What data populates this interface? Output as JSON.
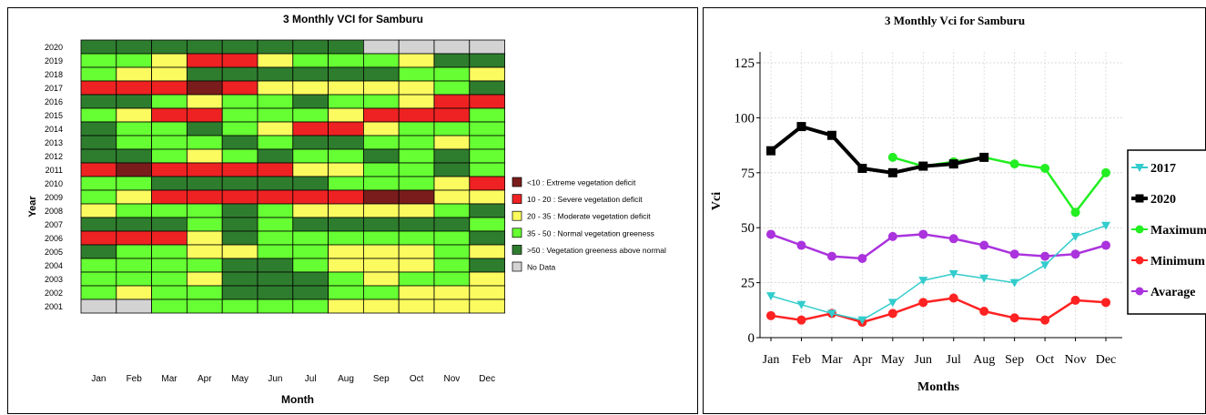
{
  "colors": {
    "extreme": "#7b1c1c",
    "severe": "#ee2222",
    "moderate": "#fbfb5f",
    "normal": "#66ff33",
    "above": "#2e7d2e",
    "nodata": "#d3d3d3"
  },
  "chart_data": [
    {
      "type": "heatmap",
      "title": "3 Monthly VCI for Samburu",
      "xlabel": "Month",
      "ylabel": "Year",
      "x_categories": [
        "Jan",
        "Feb",
        "Mar",
        "Apr",
        "May",
        "Jun",
        "Jul",
        "Aug",
        "Sep",
        "Oct",
        "Nov",
        "Dec"
      ],
      "y_categories": [
        "2020",
        "2019",
        "2018",
        "2017",
        "2016",
        "2015",
        "2014",
        "2013",
        "2012",
        "2011",
        "2010",
        "2009",
        "2008",
        "2007",
        "2006",
        "2005",
        "2004",
        "2003",
        "2002",
        "2001"
      ],
      "legend": [
        {
          "key": "E",
          "label": "<10 : Extreme vegetation deficit",
          "color": "#7b1c1c"
        },
        {
          "key": "S",
          "label": "10 - 20 : Severe vegetation deficit",
          "color": "#ee2222"
        },
        {
          "key": "M",
          "label": "20 - 35 : Moderate vegetation deficit",
          "color": "#fbfb5f"
        },
        {
          "key": "N",
          "label": "35 - 50 : Normal vegetation greeness",
          "color": "#66ff33"
        },
        {
          "key": "A",
          "label": ">50 : Vegetation greeness above normal",
          "color": "#2e7d2e"
        },
        {
          "key": "X",
          "label": "No Data",
          "color": "#d3d3d3"
        }
      ],
      "legend_position": "right",
      "cells": [
        [
          "A",
          "A",
          "A",
          "A",
          "A",
          "A",
          "A",
          "A",
          "X",
          "X",
          "X",
          "X"
        ],
        [
          "N",
          "N",
          "M",
          "S",
          "S",
          "M",
          "N",
          "N",
          "N",
          "M",
          "A",
          "A"
        ],
        [
          "N",
          "M",
          "M",
          "A",
          "A",
          "A",
          "A",
          "A",
          "A",
          "N",
          "N",
          "M"
        ],
        [
          "S",
          "S",
          "S",
          "E",
          "S",
          "M",
          "M",
          "M",
          "M",
          "M",
          "N",
          "A"
        ],
        [
          "A",
          "A",
          "N",
          "M",
          "N",
          "N",
          "A",
          "N",
          "N",
          "M",
          "S",
          "S"
        ],
        [
          "N",
          "M",
          "S",
          "S",
          "N",
          "N",
          "N",
          "M",
          "S",
          "S",
          "S",
          "N"
        ],
        [
          "A",
          "N",
          "N",
          "A",
          "N",
          "M",
          "S",
          "S",
          "M",
          "N",
          "N",
          "N"
        ],
        [
          "A",
          "N",
          "N",
          "N",
          "A",
          "N",
          "A",
          "A",
          "N",
          "N",
          "M",
          "N"
        ],
        [
          "A",
          "A",
          "N",
          "M",
          "N",
          "A",
          "N",
          "N",
          "A",
          "N",
          "A",
          "N"
        ],
        [
          "S",
          "E",
          "S",
          "S",
          "S",
          "S",
          "M",
          "M",
          "N",
          "N",
          "A",
          "N"
        ],
        [
          "N",
          "N",
          "A",
          "A",
          "A",
          "A",
          "A",
          "N",
          "N",
          "N",
          "M",
          "S"
        ],
        [
          "N",
          "M",
          "S",
          "S",
          "S",
          "S",
          "S",
          "S",
          "E",
          "E",
          "M",
          "M"
        ],
        [
          "M",
          "N",
          "N",
          "N",
          "A",
          "N",
          "M",
          "M",
          "M",
          "M",
          "N",
          "A"
        ],
        [
          "A",
          "A",
          "A",
          "N",
          "A",
          "N",
          "A",
          "A",
          "A",
          "A",
          "A",
          "N"
        ],
        [
          "S",
          "S",
          "S",
          "M",
          "A",
          "N",
          "N",
          "N",
          "N",
          "N",
          "N",
          "A"
        ],
        [
          "A",
          "N",
          "N",
          "M",
          "M",
          "N",
          "N",
          "M",
          "M",
          "M",
          "N",
          "M"
        ],
        [
          "N",
          "N",
          "N",
          "N",
          "A",
          "A",
          "N",
          "M",
          "M",
          "M",
          "N",
          "A"
        ],
        [
          "N",
          "N",
          "N",
          "M",
          "A",
          "A",
          "A",
          "N",
          "M",
          "N",
          "N",
          "M"
        ],
        [
          "N",
          "M",
          "N",
          "N",
          "A",
          "A",
          "A",
          "N",
          "N",
          "M",
          "M",
          "M"
        ],
        [
          "X",
          "X",
          "N",
          "N",
          "N",
          "N",
          "N",
          "M",
          "M",
          "M",
          "M",
          "M"
        ]
      ]
    },
    {
      "type": "line",
      "title": "3 Monthly Vci for Samburu",
      "xlabel": "Months",
      "ylabel": "Vci",
      "categories": [
        "Jan",
        "Feb",
        "Mar",
        "Apr",
        "May",
        "Jun",
        "Jul",
        "Aug",
        "Sep",
        "Oct",
        "Nov",
        "Dec"
      ],
      "ylim": [
        0,
        125
      ],
      "yticks": [
        0,
        25,
        50,
        75,
        100,
        125
      ],
      "grid": true,
      "legend_position": "right",
      "series": [
        {
          "name": "Maximum",
          "color": "#22ee22",
          "marker": "circle",
          "values": [
            null,
            null,
            null,
            null,
            82,
            78,
            80,
            82,
            79,
            77,
            57,
            75
          ]
        },
        {
          "name": "Avarage",
          "color": "#aa33dd",
          "marker": "circle",
          "values": [
            47,
            42,
            37,
            36,
            46,
            47,
            45,
            42,
            38,
            37,
            38,
            42
          ]
        },
        {
          "name": "Minimum",
          "color": "#ff2222",
          "marker": "circle",
          "values": [
            10,
            8,
            11,
            7,
            11,
            16,
            18,
            12,
            9,
            8,
            17,
            16
          ]
        },
        {
          "name": "2017",
          "color": "#33cccc",
          "marker": "triangle",
          "values": [
            19,
            15,
            11,
            8,
            16,
            26,
            29,
            27,
            25,
            33,
            46,
            51
          ]
        },
        {
          "name": "2020",
          "color": "#000000",
          "marker": "square",
          "values": [
            85,
            96,
            92,
            77,
            75,
            78,
            79,
            82,
            null,
            null,
            null,
            null
          ]
        }
      ],
      "legend_order": [
        "2017",
        "2020",
        "Maximum",
        "Minimum",
        "Avarage"
      ]
    }
  ]
}
